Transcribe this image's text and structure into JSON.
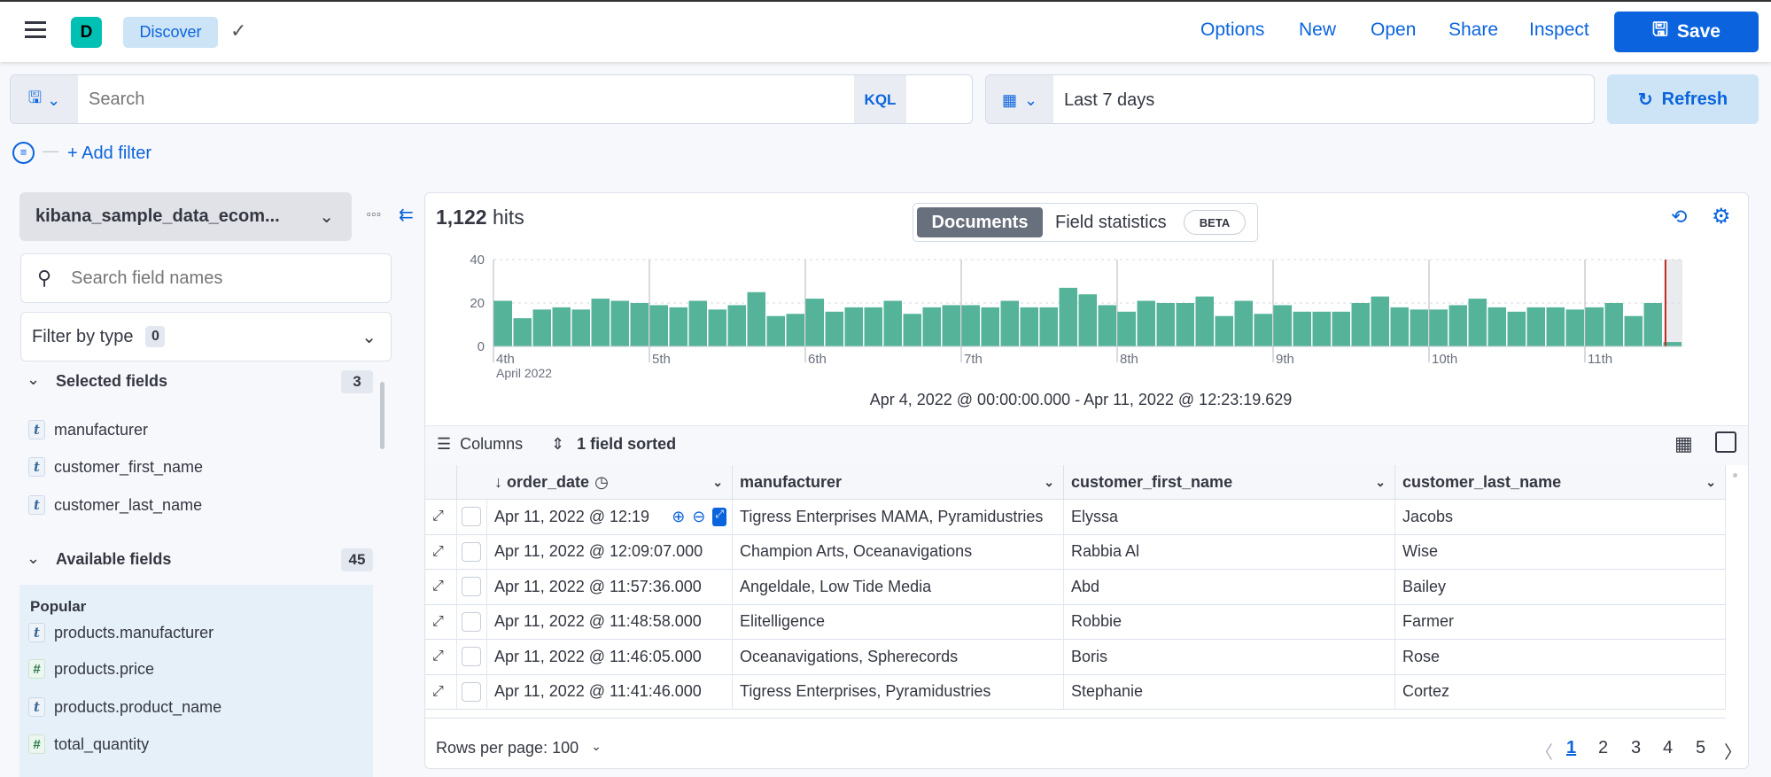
{
  "header": {
    "app_initial": "D",
    "app_name": "Discover",
    "nav": [
      "Options",
      "New",
      "Open",
      "Share",
      "Inspect"
    ],
    "save_label": "Save",
    "accent": "#0b64dd"
  },
  "query": {
    "placeholder": "Search",
    "language": "KQL",
    "time_range": "Last 7 days",
    "refresh_label": "Refresh",
    "add_filter": "+ Add filter"
  },
  "sidebar": {
    "index_pattern": "kibana_sample_data_ecom...",
    "search_placeholder": "Search field names",
    "filter_by_type": "Filter by type",
    "filter_count": "0",
    "selected_title": "Selected fields",
    "selected_count": "3",
    "selected": [
      {
        "type": "t",
        "name": "manufacturer"
      },
      {
        "type": "t",
        "name": "customer_first_name"
      },
      {
        "type": "t",
        "name": "customer_last_name"
      }
    ],
    "available_title": "Available fields",
    "available_count": "45",
    "popular_title": "Popular",
    "popular": [
      {
        "type": "t",
        "name": "products.manufacturer"
      },
      {
        "type": "#",
        "name": "products.price"
      },
      {
        "type": "t",
        "name": "products.product_name"
      },
      {
        "type": "#",
        "name": "total_quantity"
      }
    ]
  },
  "main": {
    "hits_count": "1,122",
    "hits_label": "hits",
    "tabs": [
      {
        "label": "Documents",
        "active": true
      },
      {
        "label": "Field statistics",
        "badge": "BETA"
      }
    ],
    "time_range_text": "Apr 4, 2022 @ 00:00:00.000 - Apr 11, 2022 @ 12:23:19.629",
    "columns_label": "Columns",
    "sorted_label": "1 field sorted",
    "table": {
      "headers": [
        "order_date",
        "manufacturer",
        "customer_first_name",
        "customer_last_name"
      ],
      "rows": [
        [
          "Apr 11, 2022 @ 12:19",
          "Tigress Enterprises MAMA, Pyramidustries",
          "Elyssa",
          "Jacobs"
        ],
        [
          "Apr 11, 2022 @ 12:09:07.000",
          "Champion Arts, Oceanavigations",
          "Rabbia Al",
          "Wise"
        ],
        [
          "Apr 11, 2022 @ 11:57:36.000",
          "Angeldale, Low Tide Media",
          "Abd",
          "Bailey"
        ],
        [
          "Apr 11, 2022 @ 11:48:58.000",
          "Elitelligence",
          "Robbie",
          "Farmer"
        ],
        [
          "Apr 11, 2022 @ 11:46:05.000",
          "Oceanavigations, Spherecords",
          "Boris",
          "Rose"
        ],
        [
          "Apr 11, 2022 @ 11:41:46.000",
          "Tigress Enterprises, Pyramidustries",
          "Stephanie",
          "Cortez"
        ]
      ]
    },
    "rows_per_page": "Rows per page: 100",
    "pages": [
      "1",
      "2",
      "3",
      "4",
      "5"
    ],
    "current_page": "1"
  },
  "chart_data": {
    "type": "bar",
    "interval": "3 hours",
    "x_start": "Apr 4, 2022 00:00",
    "x_tick_labels": [
      "4th",
      "5th",
      "6th",
      "7th",
      "8th",
      "9th",
      "10th",
      "11th"
    ],
    "x_sublabel": "April 2022",
    "ylim": [
      0,
      40
    ],
    "y_ticks": [
      0,
      20,
      40
    ],
    "bar_color": "#54b399",
    "now_marker_color": "#bd271e",
    "values": [
      21,
      13,
      17,
      18,
      17,
      22,
      21,
      20,
      19,
      18,
      21,
      17,
      19,
      25,
      14,
      15,
      22,
      16,
      18,
      18,
      21,
      15,
      18,
      19,
      19,
      18,
      21,
      18,
      18,
      27,
      24,
      19,
      16,
      21,
      20,
      20,
      23,
      14,
      21,
      15,
      19,
      16,
      16,
      16,
      20,
      23,
      18,
      17,
      17,
      19,
      22,
      18,
      16,
      18,
      18,
      17,
      18,
      20,
      14,
      20,
      2
    ]
  }
}
